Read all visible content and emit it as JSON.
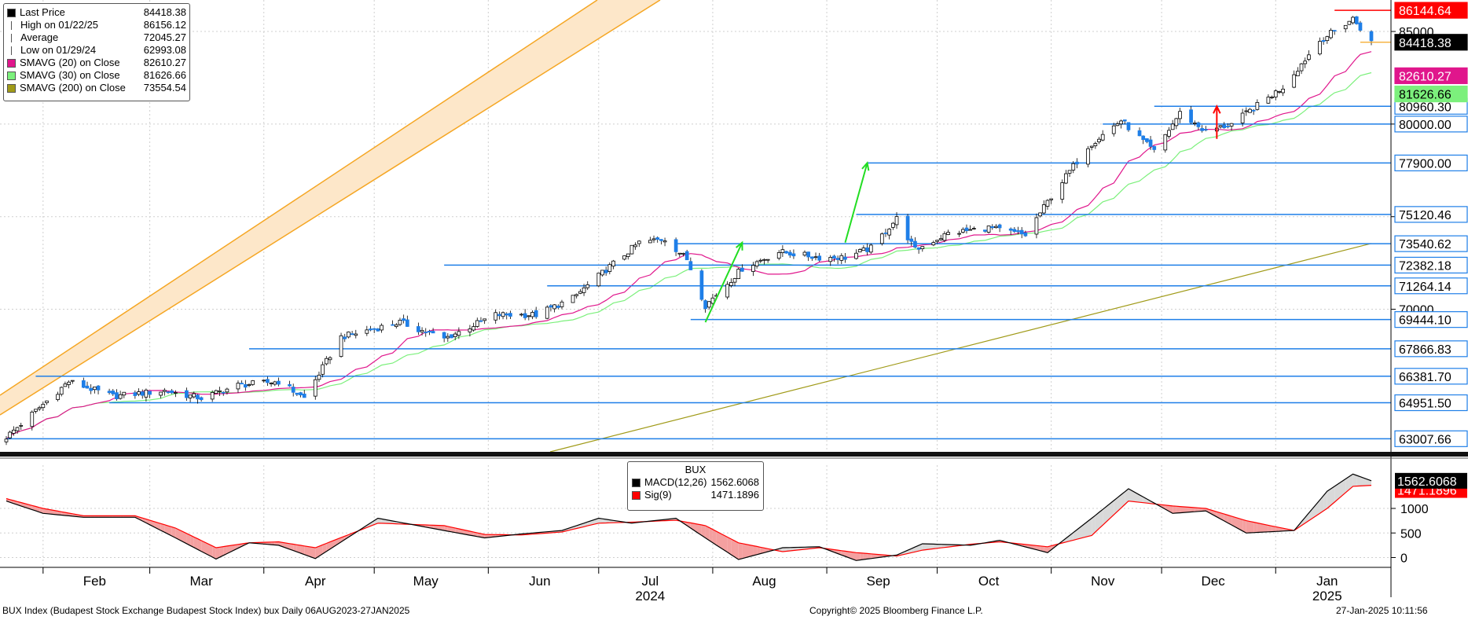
{
  "legend": [
    {
      "label": "Last Price",
      "value": "84418.38",
      "color": "#000000",
      "kind": "box"
    },
    {
      "label": "High on 01/22/25",
      "value": "86156.12",
      "color": "#555555",
      "kind": "high"
    },
    {
      "label": "Average",
      "value": "72045.27",
      "color": "#555555",
      "kind": "avg"
    },
    {
      "label": "Low on 01/29/24",
      "value": "62993.08",
      "color": "#555555",
      "kind": "low"
    },
    {
      "label": "SMAVG (20)  on Close",
      "value": "82610.27",
      "color": "#e0168c",
      "kind": "box"
    },
    {
      "label": "SMAVG (30)  on Close",
      "value": "81626.66",
      "color": "#7cf07c",
      "kind": "box"
    },
    {
      "label": "SMAVG (200)  on Close",
      "value": "73554.54",
      "color": "#a09a18",
      "kind": "box"
    }
  ],
  "macd_legend": {
    "title": "BUX",
    "items": [
      {
        "label": "MACD(12,26)",
        "value": "1562.6068",
        "color": "#000000"
      },
      {
        "label": "Sig(9)",
        "value": "1471.1896",
        "color": "#ff0000"
      }
    ]
  },
  "months": [
    "Feb",
    "Mar",
    "Apr",
    "May",
    "Jun",
    "Jul",
    "Aug",
    "Sep",
    "Oct",
    "Nov",
    "Dec",
    "Jan"
  ],
  "years": [
    "2024",
    "2025"
  ],
  "footer": {
    "left": "BUX Index (Budapest Stock Exchange Budapest Stock Index) bux  Daily 06AUG2023-27JAN2025",
    "center": "Copyright© 2025 Bloomberg Finance L.P.",
    "right": "27-Jan-2025 10:11:56"
  },
  "chart_data": [
    {
      "type": "candlestick",
      "panel": "price",
      "y_ticks": [
        70000,
        75000,
        80000,
        85000
      ],
      "ylim": [
        62300,
        86700
      ],
      "x_range": [
        "2024-01-22",
        "2025-01-27"
      ],
      "highlighted_labels": [
        {
          "text": "86144.64",
          "value": 86144.64,
          "bg": "#ff0000",
          "fg": "#ffffff"
        },
        {
          "text": "84418.38",
          "value": 84418.38,
          "bg": "#000000",
          "fg": "#ffffff"
        },
        {
          "text": "82610.27",
          "value": 82610.27,
          "bg": "#e0168c",
          "fg": "#ffffff"
        },
        {
          "text": "81626.66",
          "value": 81626.66,
          "bg": "#7cf07c",
          "fg": "#000000"
        }
      ],
      "levels": [
        {
          "text": "80960.30",
          "value": 80960.3,
          "from": "2024-11-29"
        },
        {
          "text": "80000.00",
          "value": 80000.0,
          "from": "2024-11-15"
        },
        {
          "text": "77900.00",
          "value": 77900.0,
          "from": "2024-09-12"
        },
        {
          "text": "75120.46",
          "value": 75120.46,
          "from": "2024-09-09"
        },
        {
          "text": "73540.62",
          "value": 73540.62,
          "from": "2024-07-22"
        },
        {
          "text": "72382.18",
          "value": 72382.18,
          "from": "2024-05-20"
        },
        {
          "text": "71264.14",
          "value": 71264.14,
          "from": "2024-06-17"
        },
        {
          "text": "69444.10",
          "value": 69444.1,
          "from": "2024-07-26"
        },
        {
          "text": "67866.83",
          "value": 67866.83,
          "from": "2024-03-28"
        },
        {
          "text": "66381.70",
          "value": 66381.7,
          "from": "2024-01-30"
        },
        {
          "text": "64951.50",
          "value": 64951.5,
          "from": "2024-02-19"
        },
        {
          "text": "63007.66",
          "value": 63007.66,
          "from": "2024-01-22"
        }
      ],
      "channel": {
        "color": "#f5a623",
        "fill": "#fde7c9"
      },
      "sma_colors": {
        "sma20": "#e0168c",
        "sma30": "#7cf07c",
        "sma200": "#a09a18"
      },
      "up_color": "#000000",
      "down_color": "#1f7fe8",
      "anchors": [
        [
          "2024-01-22",
          63100
        ],
        [
          "2024-02-08",
          66100
        ],
        [
          "2024-02-20",
          65300
        ],
        [
          "2024-03-05",
          65600
        ],
        [
          "2024-03-15",
          65200
        ],
        [
          "2024-03-25",
          65900
        ],
        [
          "2024-04-05",
          66100
        ],
        [
          "2024-04-12",
          65200
        ],
        [
          "2024-04-22",
          68500
        ],
        [
          "2024-05-08",
          69300
        ],
        [
          "2024-05-20",
          68400
        ],
        [
          "2024-06-03",
          69700
        ],
        [
          "2024-06-14",
          69700
        ],
        [
          "2024-06-24",
          70600
        ],
        [
          "2024-07-04",
          72300
        ],
        [
          "2024-07-12",
          73600
        ],
        [
          "2024-07-19",
          73800
        ],
        [
          "2024-07-25",
          72700
        ],
        [
          "2024-07-30",
          70200
        ],
        [
          "2024-08-09",
          72200
        ],
        [
          "2024-08-19",
          73100
        ],
        [
          "2024-08-30",
          72800
        ],
        [
          "2024-09-06",
          72800
        ],
        [
          "2024-09-13",
          73300
        ],
        [
          "2024-09-20",
          74900
        ],
        [
          "2024-09-25",
          73200
        ],
        [
          "2024-10-04",
          74100
        ],
        [
          "2024-10-15",
          74400
        ],
        [
          "2024-10-25",
          74000
        ],
        [
          "2024-11-01",
          76100
        ],
        [
          "2024-11-11",
          78800
        ],
        [
          "2024-11-20",
          80200
        ],
        [
          "2024-11-29",
          78500
        ],
        [
          "2024-12-06",
          80600
        ],
        [
          "2024-12-13",
          79600
        ],
        [
          "2024-12-20",
          80000
        ],
        [
          "2025-01-03",
          82000
        ],
        [
          "2025-01-13",
          84500
        ],
        [
          "2025-01-22",
          85700
        ],
        [
          "2025-01-27",
          84418
        ]
      ]
    },
    {
      "type": "area",
      "panel": "macd",
      "series": [
        {
          "name": "MACD(12,26)"
        },
        {
          "name": "Sig(9)"
        }
      ],
      "y_ticks": [
        0,
        500,
        1000
      ],
      "ylim": [
        -200,
        1800
      ],
      "macd_anchors": [
        [
          "2024-01-22",
          1150
        ],
        [
          "2024-02-01",
          900
        ],
        [
          "2024-02-12",
          820
        ],
        [
          "2024-02-26",
          820
        ],
        [
          "2024-03-08",
          400
        ],
        [
          "2024-03-19",
          -30
        ],
        [
          "2024-03-28",
          300
        ],
        [
          "2024-04-05",
          250
        ],
        [
          "2024-04-15",
          -20
        ],
        [
          "2024-05-02",
          800
        ],
        [
          "2024-05-20",
          550
        ],
        [
          "2024-05-31",
          400
        ],
        [
          "2024-06-10",
          480
        ],
        [
          "2024-06-21",
          550
        ],
        [
          "2024-07-01",
          800
        ],
        [
          "2024-07-10",
          700
        ],
        [
          "2024-07-22",
          800
        ],
        [
          "2024-07-30",
          400
        ],
        [
          "2024-08-08",
          -40
        ],
        [
          "2024-08-20",
          200
        ],
        [
          "2024-08-30",
          220
        ],
        [
          "2024-09-09",
          -60
        ],
        [
          "2024-09-20",
          50
        ],
        [
          "2024-09-27",
          280
        ],
        [
          "2024-10-10",
          250
        ],
        [
          "2024-10-18",
          350
        ],
        [
          "2024-10-31",
          100
        ],
        [
          "2024-11-12",
          800
        ],
        [
          "2024-11-22",
          1400
        ],
        [
          "2024-12-04",
          900
        ],
        [
          "2024-12-13",
          950
        ],
        [
          "2024-12-24",
          500
        ],
        [
          "2025-01-06",
          550
        ],
        [
          "2025-01-15",
          1350
        ],
        [
          "2025-01-22",
          1700
        ],
        [
          "2025-01-27",
          1563
        ]
      ],
      "signal_anchors": [
        [
          "2024-01-22",
          1200
        ],
        [
          "2024-02-01",
          1000
        ],
        [
          "2024-02-12",
          850
        ],
        [
          "2024-02-26",
          850
        ],
        [
          "2024-03-08",
          600
        ],
        [
          "2024-03-19",
          200
        ],
        [
          "2024-03-28",
          300
        ],
        [
          "2024-04-05",
          320
        ],
        [
          "2024-04-15",
          200
        ],
        [
          "2024-05-02",
          700
        ],
        [
          "2024-05-20",
          650
        ],
        [
          "2024-05-31",
          470
        ],
        [
          "2024-06-10",
          460
        ],
        [
          "2024-06-21",
          520
        ],
        [
          "2024-07-01",
          700
        ],
        [
          "2024-07-10",
          720
        ],
        [
          "2024-07-22",
          760
        ],
        [
          "2024-07-30",
          650
        ],
        [
          "2024-08-08",
          300
        ],
        [
          "2024-08-20",
          120
        ],
        [
          "2024-08-30",
          200
        ],
        [
          "2024-09-09",
          100
        ],
        [
          "2024-09-20",
          30
        ],
        [
          "2024-09-27",
          150
        ],
        [
          "2024-10-10",
          270
        ],
        [
          "2024-10-18",
          320
        ],
        [
          "2024-10-31",
          220
        ],
        [
          "2024-11-12",
          450
        ],
        [
          "2024-11-22",
          1150
        ],
        [
          "2024-12-04",
          1050
        ],
        [
          "2024-12-13",
          1000
        ],
        [
          "2024-12-24",
          750
        ],
        [
          "2025-01-06",
          550
        ],
        [
          "2025-01-15",
          1000
        ],
        [
          "2025-01-22",
          1450
        ],
        [
          "2025-01-27",
          1471
        ]
      ],
      "highlighted_labels": [
        {
          "text": "1562.6068",
          "value": 1562.6068,
          "bg": "#000000",
          "fg": "#ffffff"
        },
        {
          "text": "1471.1896",
          "value": 1471.1896,
          "bg": "#ff0000",
          "fg": "#ffffff"
        }
      ],
      "pos_fill": "#d9d9d9",
      "neg_fill": "#f4a0a0"
    }
  ]
}
